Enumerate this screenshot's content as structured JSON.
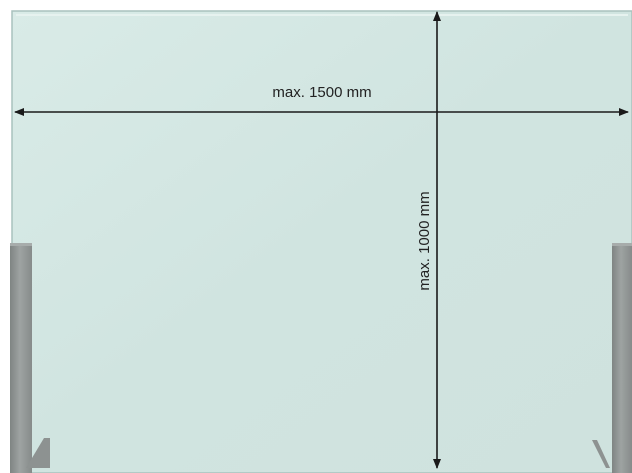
{
  "dimensions": {
    "width_label": "max. 1500 mm",
    "height_label": "max. 1000 mm"
  },
  "colors": {
    "glass": "#d3e6e2",
    "glass_edge": "#a9c2bd",
    "post": "#8f9493",
    "arrow": "#1a1a1a"
  }
}
